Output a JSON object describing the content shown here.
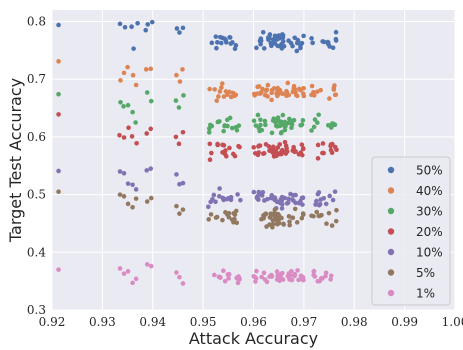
{
  "chart_data": {
    "type": "scatter",
    "title": "",
    "xlabel": "Attack Accuracy",
    "ylabel": "Target Test Accuracy",
    "xlim": [
      0.92,
      1.0
    ],
    "ylim": [
      0.3,
      0.82
    ],
    "xticks": [
      "0.92",
      "0.93",
      "0.94",
      "0.95",
      "0.96",
      "0.97",
      "0.98",
      "0.99",
      "1.00"
    ],
    "yticks": [
      "0.3",
      "0.4",
      "0.5",
      "0.6",
      "0.7",
      "0.8"
    ],
    "grid": true,
    "background": "#eaeaf2",
    "legend_position": "lower-right",
    "series": [
      {
        "name": "50%",
        "color": "#4c72b0",
        "center": 0.765,
        "spread": 0.013,
        "points": [
          [
            0.9213,
            0.794
          ],
          [
            0.9335,
            0.796
          ],
          [
            0.9345,
            0.79
          ],
          [
            0.9358,
            0.791
          ],
          [
            0.9362,
            0.753
          ],
          [
            0.937,
            0.797
          ],
          [
            0.9386,
            0.785
          ],
          [
            0.939,
            0.795
          ],
          [
            0.9399,
            0.799
          ],
          [
            0.9448,
            0.788
          ],
          [
            0.9453,
            0.781
          ],
          [
            0.946,
            0.789
          ]
        ]
      },
      {
        "name": "40%",
        "color": "#dd8452",
        "center": 0.678,
        "spread": 0.012,
        "points": [
          [
            0.9213,
            0.731
          ],
          [
            0.9336,
            0.698
          ],
          [
            0.9343,
            0.711
          ],
          [
            0.935,
            0.721
          ],
          [
            0.9361,
            0.707
          ],
          [
            0.9367,
            0.69
          ],
          [
            0.9387,
            0.717
          ],
          [
            0.9396,
            0.718
          ],
          [
            0.9447,
            0.707
          ],
          [
            0.9454,
            0.696
          ],
          [
            0.9459,
            0.717
          ]
        ]
      },
      {
        "name": "30%",
        "color": "#55a868",
        "center": 0.623,
        "spread": 0.013,
        "points": [
          [
            0.9213,
            0.674
          ],
          [
            0.9336,
            0.66
          ],
          [
            0.9342,
            0.653
          ],
          [
            0.9351,
            0.655
          ],
          [
            0.936,
            0.643
          ],
          [
            0.9366,
            0.625
          ],
          [
            0.9389,
            0.677
          ],
          [
            0.9397,
            0.662
          ],
          [
            0.9446,
            0.663
          ],
          [
            0.9452,
            0.651
          ],
          [
            0.9461,
            0.672
          ]
        ]
      },
      {
        "name": "20%",
        "color": "#c44e52",
        "center": 0.578,
        "spread": 0.014,
        "points": [
          [
            0.9213,
            0.639
          ],
          [
            0.9334,
            0.603
          ],
          [
            0.9343,
            0.599
          ],
          [
            0.9352,
            0.616
          ],
          [
            0.9359,
            0.601
          ],
          [
            0.9368,
            0.589
          ],
          [
            0.9388,
            0.606
          ],
          [
            0.9396,
            0.614
          ],
          [
            0.9446,
            0.6
          ],
          [
            0.9452,
            0.588
          ],
          [
            0.946,
            0.608
          ]
        ]
      },
      {
        "name": "10%",
        "color": "#8172b3",
        "center": 0.493,
        "spread": 0.012,
        "points": [
          [
            0.9213,
            0.541
          ],
          [
            0.9335,
            0.54
          ],
          [
            0.9343,
            0.537
          ],
          [
            0.9351,
            0.519
          ],
          [
            0.936,
            0.517
          ],
          [
            0.9367,
            0.509
          ],
          [
            0.9388,
            0.542
          ],
          [
            0.9396,
            0.545
          ],
          [
            0.9447,
            0.535
          ],
          [
            0.9453,
            0.518
          ],
          [
            0.946,
            0.52
          ]
        ]
      },
      {
        "name": "5%",
        "color": "#937860",
        "center": 0.46,
        "spread": 0.014,
        "points": [
          [
            0.9213,
            0.505
          ],
          [
            0.9335,
            0.5
          ],
          [
            0.9343,
            0.497
          ],
          [
            0.9351,
            0.484
          ],
          [
            0.936,
            0.478
          ],
          [
            0.9367,
            0.493
          ],
          [
            0.9389,
            0.488
          ],
          [
            0.9397,
            0.494
          ],
          [
            0.9447,
            0.48
          ],
          [
            0.9453,
            0.467
          ],
          [
            0.946,
            0.474
          ]
        ]
      },
      {
        "name": "1%",
        "color": "#da8bc3",
        "center": 0.357,
        "spread": 0.009,
        "points": [
          [
            0.9213,
            0.37
          ],
          [
            0.9335,
            0.372
          ],
          [
            0.9343,
            0.363
          ],
          [
            0.9351,
            0.367
          ],
          [
            0.936,
            0.347
          ],
          [
            0.9367,
            0.354
          ],
          [
            0.9389,
            0.379
          ],
          [
            0.9397,
            0.376
          ],
          [
            0.9447,
            0.365
          ],
          [
            0.9453,
            0.357
          ],
          [
            0.946,
            0.346
          ]
        ]
      }
    ],
    "clusters": [
      {
        "x_range": [
          0.951,
          0.9575
        ],
        "count": 16
      },
      {
        "x_range": [
          0.96,
          0.966
        ],
        "count": 22
      },
      {
        "x_range": [
          0.964,
          0.97
        ],
        "count": 22
      },
      {
        "x_range": [
          0.9715,
          0.9765
        ],
        "count": 12
      }
    ]
  }
}
